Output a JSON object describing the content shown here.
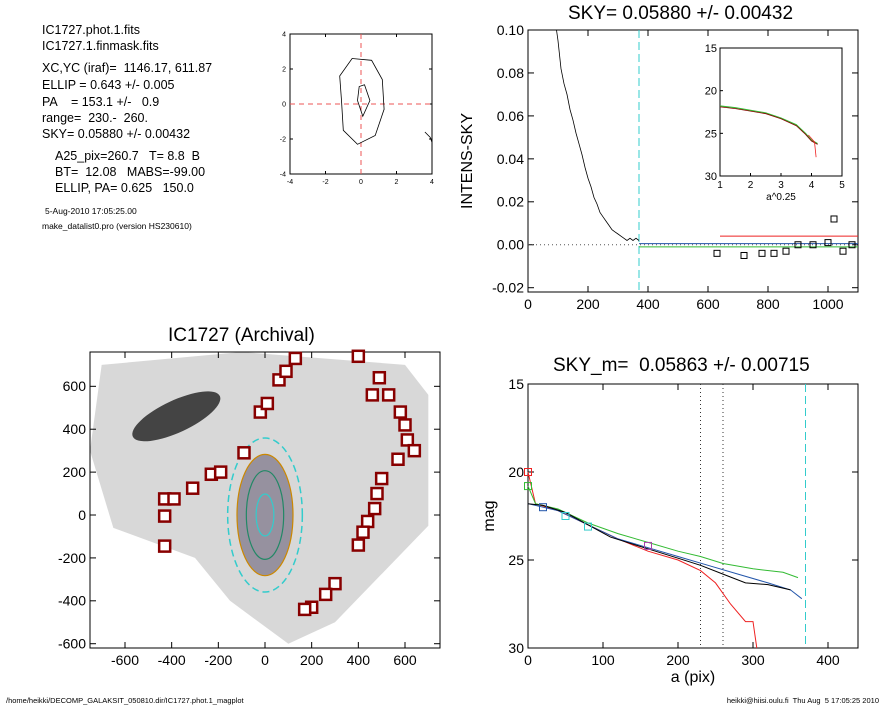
{
  "info": {
    "lines1": [
      "IC1727.phot.1.fits",
      "IC1727.1.finmask.fits"
    ],
    "lines2": [
      "XC,YC (iraf)=  1146.17, 611.87",
      "ELLIP = 0.643 +/- 0.005",
      "PA    = 153.1 +/-   0.9",
      "range=  230.-  260.",
      "SKY= 0.05880 +/- 0.00432"
    ],
    "lines3": [
      "A25_pix=260.7   T= 8.8  B",
      "BT=  12.08   MABS=-99.00",
      "ELLIP, PA= 0.625   150.0"
    ],
    "date": "5-Aug-2010 17:05:25.00",
    "program": "make_datalist0.pro (version HS230610)"
  },
  "footer": {
    "left": "/home/heikki/DECOMP_GALAKSIT_050810.dir/IC1727.phot.1_magplot",
    "right": "heikki@hiisi.oulu.fi  Thu Aug  5 17:05:25 2010"
  },
  "colors": {
    "sky_line": "#33cccc",
    "red": "#ee2222",
    "green": "#33bb33",
    "blue": "#2255aa",
    "dark_red": "#880000"
  },
  "chart_data": [
    {
      "type": "line",
      "title": "",
      "xlim": [
        -4,
        4
      ],
      "ylim": [
        -4,
        4
      ],
      "x_ticks": [
        -4,
        -2,
        0,
        2,
        4
      ],
      "y_ticks": [
        -4,
        -2,
        0,
        2,
        4
      ],
      "crosshair": {
        "x": 0,
        "y": 0
      },
      "contours": [
        [
          [
            -1.1,
            0.2
          ],
          [
            -1.2,
            1.6
          ],
          [
            -0.5,
            2.6
          ],
          [
            0.6,
            2.5
          ],
          [
            1.2,
            1.4
          ],
          [
            1.3,
            -0.3
          ],
          [
            0.8,
            -1.8
          ],
          [
            -0.2,
            -2.3
          ],
          [
            -1.0,
            -1.5
          ],
          [
            -1.1,
            0.2
          ]
        ],
        [
          [
            -0.2,
            0.2
          ],
          [
            -0.1,
            1.0
          ],
          [
            0.2,
            1.1
          ],
          [
            0.5,
            0.2
          ],
          [
            0.1,
            -0.7
          ],
          [
            -0.2,
            0.2
          ]
        ],
        [
          [
            3.6,
            -1.6
          ],
          [
            3.9,
            -1.9
          ],
          [
            4.0,
            -2.2
          ]
        ]
      ]
    },
    {
      "type": "line",
      "title": "SKY= 0.05880 +/- 0.00432",
      "xlabel": "",
      "ylabel": "INTENS-SKY",
      "xlim": [
        0,
        1100
      ],
      "ylim": [
        -0.022,
        0.1
      ],
      "x_ticks": [
        0,
        200,
        400,
        600,
        800,
        1000
      ],
      "y_ticks": [
        -0.02,
        0.0,
        0.02,
        0.04,
        0.06,
        0.08,
        0.1
      ],
      "y_tick_labels": [
        "-0.02",
        "0.00",
        "0.02",
        "0.04",
        "0.06",
        "0.08",
        "0.10"
      ],
      "sky_radius": 370,
      "profile": [
        [
          95,
          0.1
        ],
        [
          100,
          0.095
        ],
        [
          110,
          0.082
        ],
        [
          120,
          0.075
        ],
        [
          130,
          0.07
        ],
        [
          140,
          0.063
        ],
        [
          150,
          0.058
        ],
        [
          160,
          0.052
        ],
        [
          170,
          0.047
        ],
        [
          180,
          0.042
        ],
        [
          190,
          0.036
        ],
        [
          200,
          0.031
        ],
        [
          210,
          0.027
        ],
        [
          220,
          0.022
        ],
        [
          230,
          0.019
        ],
        [
          240,
          0.015
        ],
        [
          250,
          0.013
        ],
        [
          260,
          0.011
        ],
        [
          270,
          0.009
        ],
        [
          280,
          0.007
        ],
        [
          290,
          0.006
        ],
        [
          300,
          0.005
        ],
        [
          310,
          0.004
        ],
        [
          320,
          0.003
        ],
        [
          330,
          0.002
        ],
        [
          340,
          0.003
        ],
        [
          350,
          0.002
        ],
        [
          360,
          0.003
        ],
        [
          370,
          0.002
        ]
      ],
      "flat_lines": [
        {
          "color": "#ee2222",
          "x": [
            640,
            1100
          ],
          "y": 0.004
        },
        {
          "color": "#2255aa",
          "x": [
            370,
            1100
          ],
          "y": 0.0005
        },
        {
          "color": "#33bb33",
          "x": [
            370,
            1100
          ],
          "y": -0.001
        }
      ],
      "squares": [
        [
          630,
          -0.004
        ],
        [
          720,
          -0.005
        ],
        [
          780,
          -0.004
        ],
        [
          820,
          -0.004
        ],
        [
          860,
          -0.003
        ],
        [
          900,
          0.0
        ],
        [
          950,
          0.0
        ],
        [
          1000,
          0.001
        ],
        [
          1020,
          0.012
        ],
        [
          1050,
          -0.003
        ],
        [
          1080,
          0.0
        ]
      ],
      "inset": {
        "xlabel": "a^0.25",
        "xlim": [
          1,
          5
        ],
        "ylim": [
          15,
          30
        ],
        "x_ticks": [
          1,
          2,
          3,
          4,
          5
        ],
        "y_ticks": [
          15,
          20,
          25,
          30
        ],
        "curve": [
          [
            1,
            21.8
          ],
          [
            1.5,
            22.0
          ],
          [
            2,
            22.3
          ],
          [
            2.5,
            22.6
          ],
          [
            3,
            23.2
          ],
          [
            3.5,
            24.0
          ],
          [
            3.8,
            25.0
          ],
          [
            4.0,
            25.8
          ],
          [
            4.2,
            26.2
          ]
        ]
      }
    },
    {
      "type": "scatter",
      "title": "IC1727 (Archival)",
      "xlim": [
        -750,
        750
      ],
      "ylim": [
        -620,
        760
      ],
      "x_ticks": [
        -600,
        -400,
        -200,
        0,
        200,
        400,
        600
      ],
      "y_ticks": [
        -600,
        -400,
        -200,
        0,
        200,
        400,
        600
      ],
      "ellipses": [
        {
          "a": 330,
          "b": 160,
          "color": "#33cccc"
        },
        {
          "a": 260,
          "b": 120,
          "color": "#cc8800"
        },
        {
          "a": 190,
          "b": 80,
          "color": "#228866"
        },
        {
          "a": 90,
          "b": 38,
          "color": "#33cccc"
        }
      ],
      "ellipse_center": [
        0,
        0
      ],
      "ellipse_pa_deg": 153,
      "masked_points": [
        [
          -430,
          -145
        ],
        [
          -430,
          -5
        ],
        [
          -430,
          75
        ],
        [
          -390,
          75
        ],
        [
          -310,
          125
        ],
        [
          -230,
          190
        ],
        [
          -190,
          200
        ],
        [
          -90,
          290
        ],
        [
          -20,
          480
        ],
        [
          10,
          520
        ],
        [
          60,
          630
        ],
        [
          90,
          670
        ],
        [
          130,
          730
        ],
        [
          400,
          740
        ],
        [
          460,
          560
        ],
        [
          490,
          640
        ],
        [
          530,
          560
        ],
        [
          580,
          480
        ],
        [
          600,
          420
        ],
        [
          610,
          350
        ],
        [
          640,
          300
        ],
        [
          570,
          260
        ],
        [
          500,
          170
        ],
        [
          480,
          100
        ],
        [
          470,
          30
        ],
        [
          440,
          -30
        ],
        [
          420,
          -80
        ],
        [
          400,
          -140
        ],
        [
          300,
          -320
        ],
        [
          260,
          -370
        ],
        [
          200,
          -430
        ],
        [
          170,
          -440
        ]
      ]
    },
    {
      "type": "line",
      "title": "SKY_m=  0.05863 +/- 0.00715",
      "xlabel": "a (pix)",
      "ylabel": "mag",
      "xlim": [
        0,
        440
      ],
      "ylim": [
        30,
        15
      ],
      "x_ticks": [
        0,
        100,
        200,
        300,
        400
      ],
      "y_ticks": [
        15,
        20,
        25,
        30
      ],
      "range_lines": [
        230,
        260
      ],
      "sky_radius": 370,
      "series": [
        {
          "color": "#ee2222",
          "points": [
            [
              0,
              20.0
            ],
            [
              10,
              21.8
            ],
            [
              40,
              22.2
            ],
            [
              80,
              23.0
            ],
            [
              120,
              23.8
            ],
            [
              160,
              24.5
            ],
            [
              200,
              25.0
            ],
            [
              230,
              25.6
            ],
            [
              250,
              26.3
            ],
            [
              270,
              27.5
            ],
            [
              290,
              28.5
            ],
            [
              300,
              28.5
            ],
            [
              305,
              30
            ]
          ]
        },
        {
          "color": "#33bb33",
          "points": [
            [
              0,
              20.8
            ],
            [
              10,
              21.8
            ],
            [
              40,
              22.1
            ],
            [
              80,
              22.9
            ],
            [
              120,
              23.5
            ],
            [
              160,
              24.0
            ],
            [
              200,
              24.5
            ],
            [
              230,
              24.8
            ],
            [
              260,
              25.2
            ],
            [
              300,
              25.5
            ],
            [
              340,
              25.7
            ],
            [
              360,
              26.0
            ]
          ]
        },
        {
          "color": "#2255aa",
          "points": [
            [
              0,
              21.8
            ],
            [
              20,
              22.0
            ],
            [
              40,
              22.2
            ],
            [
              80,
              23.0
            ],
            [
              120,
              23.8
            ],
            [
              160,
              24.3
            ],
            [
              200,
              24.8
            ],
            [
              240,
              25.3
            ],
            [
              280,
              25.8
            ],
            [
              320,
              26.3
            ],
            [
              350,
              26.7
            ],
            [
              365,
              27.2
            ]
          ]
        },
        {
          "color": "#000000",
          "points": [
            [
              0,
              21.8
            ],
            [
              20,
              21.9
            ],
            [
              50,
              22.3
            ],
            [
              80,
              23.0
            ],
            [
              110,
              23.7
            ],
            [
              140,
              24.1
            ],
            [
              170,
              24.5
            ],
            [
              200,
              24.9
            ],
            [
              230,
              25.3
            ],
            [
              260,
              25.8
            ],
            [
              290,
              26.3
            ],
            [
              320,
              26.4
            ],
            [
              350,
              26.7
            ]
          ]
        }
      ],
      "squares": [
        {
          "color": "#ee2222",
          "x": 0,
          "y": 20.0
        },
        {
          "color": "#33bb33",
          "x": 0,
          "y": 20.8
        },
        {
          "color": "#2255aa",
          "x": 20,
          "y": 22.0
        },
        {
          "color": "#33cccc",
          "x": 50,
          "y": 22.5
        },
        {
          "color": "#33cccc",
          "x": 80,
          "y": 23.1
        },
        {
          "color": "#aa44aa",
          "x": 160,
          "y": 24.2
        }
      ]
    }
  ]
}
